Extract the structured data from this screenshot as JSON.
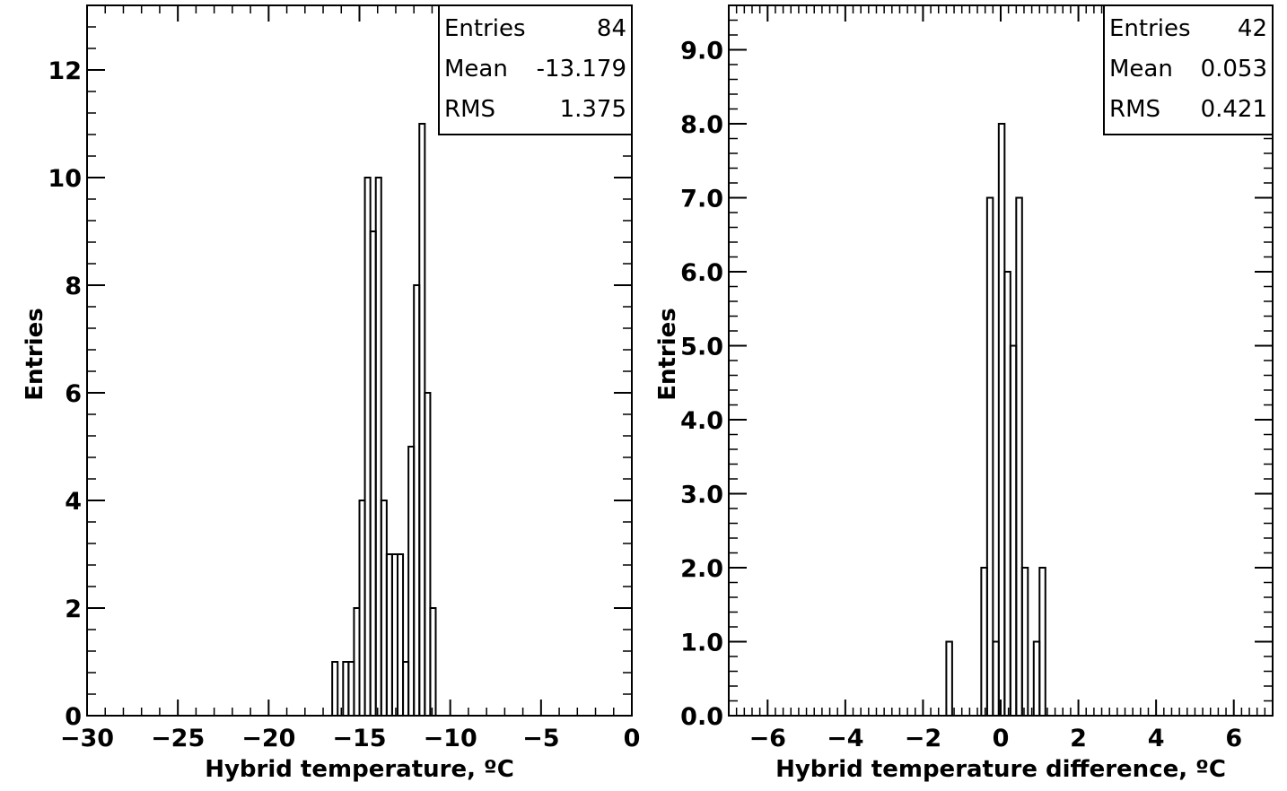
{
  "chart_data": [
    {
      "type": "histogram",
      "xlabel": "Hybrid temperature, ºC",
      "ylabel": "Entries",
      "xlim": [
        -30,
        0
      ],
      "ylim": [
        0,
        13.2
      ],
      "x_ticks": [
        -30,
        -25,
        -20,
        -15,
        -10,
        -5,
        0
      ],
      "x_tick_labels": [
        "−30",
        "−25",
        "−20",
        "−15",
        "−10",
        "−5",
        "0"
      ],
      "y_ticks": [
        0,
        2,
        4,
        6,
        8,
        10,
        12
      ],
      "y_tick_labels": [
        "0",
        "2",
        "4",
        "6",
        "8",
        "10",
        "12"
      ],
      "bin_width": 0.3,
      "bins": [
        {
          "x": -16.5,
          "count": 1
        },
        {
          "x": -16.2,
          "count": 0
        },
        {
          "x": -15.9,
          "count": 1
        },
        {
          "x": -15.6,
          "count": 1
        },
        {
          "x": -15.3,
          "count": 2
        },
        {
          "x": -15.0,
          "count": 4
        },
        {
          "x": -14.7,
          "count": 10
        },
        {
          "x": -14.4,
          "count": 9
        },
        {
          "x": -14.1,
          "count": 10
        },
        {
          "x": -13.8,
          "count": 4
        },
        {
          "x": -13.5,
          "count": 3
        },
        {
          "x": -13.2,
          "count": 3
        },
        {
          "x": -12.9,
          "count": 3
        },
        {
          "x": -12.6,
          "count": 1
        },
        {
          "x": -12.3,
          "count": 5
        },
        {
          "x": -12.0,
          "count": 8
        },
        {
          "x": -11.7,
          "count": 11
        },
        {
          "x": -11.4,
          "count": 6
        },
        {
          "x": -11.1,
          "count": 2
        }
      ],
      "stats": [
        {
          "label": "Entries",
          "value": "84"
        },
        {
          "label": "Mean",
          "value": "-13.179"
        },
        {
          "label": "RMS",
          "value": "1.375"
        }
      ]
    },
    {
      "type": "histogram",
      "xlabel": "Hybrid temperature difference, ºC",
      "ylabel": "Entries",
      "xlim": [
        -7,
        7
      ],
      "ylim": [
        0,
        9.6
      ],
      "x_ticks": [
        -6,
        -4,
        -2,
        0,
        2,
        4,
        6
      ],
      "x_tick_labels": [
        "−6",
        "−4",
        "−2",
        "0",
        "2",
        "4",
        "6"
      ],
      "y_ticks": [
        0,
        1,
        2,
        3,
        4,
        5,
        6,
        7,
        8,
        9
      ],
      "y_tick_labels": [
        "0.0",
        "1.0",
        "2.0",
        "3.0",
        "4.0",
        "5.0",
        "6.0",
        "7.0",
        "8.0",
        "9.0"
      ],
      "bin_width": 0.15,
      "bins": [
        {
          "x": -1.4,
          "count": 1
        },
        {
          "x": -1.25,
          "count": 0
        },
        {
          "x": -1.1,
          "count": 0
        },
        {
          "x": -0.95,
          "count": 0
        },
        {
          "x": -0.8,
          "count": 0
        },
        {
          "x": -0.65,
          "count": 0
        },
        {
          "x": -0.5,
          "count": 2
        },
        {
          "x": -0.35,
          "count": 7
        },
        {
          "x": -0.2,
          "count": 1
        },
        {
          "x": -0.05,
          "count": 8
        },
        {
          "x": 0.1,
          "count": 6
        },
        {
          "x": 0.25,
          "count": 5
        },
        {
          "x": 0.4,
          "count": 7
        },
        {
          "x": 0.55,
          "count": 2
        },
        {
          "x": 0.7,
          "count": 0
        },
        {
          "x": 0.85,
          "count": 1
        },
        {
          "x": 1.0,
          "count": 2
        }
      ],
      "stats": [
        {
          "label": "Entries",
          "value": "42"
        },
        {
          "label": "Mean",
          "value": "0.053"
        },
        {
          "label": "RMS",
          "value": "0.421"
        }
      ]
    }
  ]
}
